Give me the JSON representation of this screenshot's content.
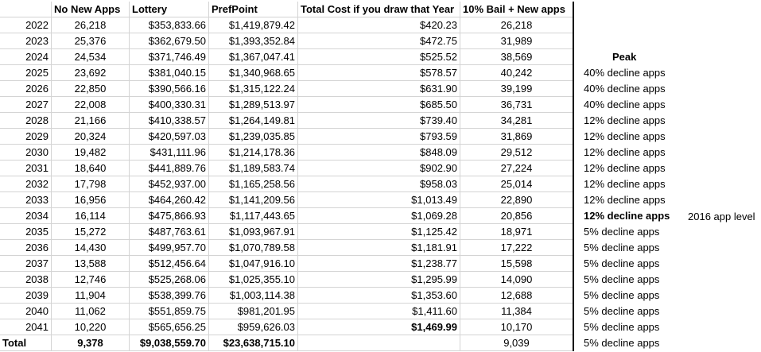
{
  "headers": [
    "",
    "No New Apps",
    "Lottery",
    "PrefPoint",
    "Total Cost if you draw that Year",
    "10% Bail + New apps"
  ],
  "rows": [
    {
      "year": "2022",
      "no_new_apps": "26,218",
      "lottery": "$353,833.66",
      "prefpoint": "$1,419,879.42",
      "total_cost": "$420.23",
      "bail_new": "26,218"
    },
    {
      "year": "2023",
      "no_new_apps": "25,376",
      "lottery": "$362,679.50",
      "prefpoint": "$1,393,352.84",
      "total_cost": "$472.75",
      "bail_new": "31,989"
    },
    {
      "year": "2024",
      "no_new_apps": "24,534",
      "lottery": "$371,746.49",
      "prefpoint": "$1,367,047.41",
      "total_cost": "$525.52",
      "bail_new": "38,569"
    },
    {
      "year": "2025",
      "no_new_apps": "23,692",
      "lottery": "$381,040.15",
      "prefpoint": "$1,340,968.65",
      "total_cost": "$578.57",
      "bail_new": "40,242"
    },
    {
      "year": "2026",
      "no_new_apps": "22,850",
      "lottery": "$390,566.16",
      "prefpoint": "$1,315,122.24",
      "total_cost": "$631.90",
      "bail_new": "39,199"
    },
    {
      "year": "2027",
      "no_new_apps": "22,008",
      "lottery": "$400,330.31",
      "prefpoint": "$1,289,513.97",
      "total_cost": "$685.50",
      "bail_new": "36,731"
    },
    {
      "year": "2028",
      "no_new_apps": "21,166",
      "lottery": "$410,338.57",
      "prefpoint": "$1,264,149.81",
      "total_cost": "$739.40",
      "bail_new": "34,281"
    },
    {
      "year": "2029",
      "no_new_apps": "20,324",
      "lottery": "$420,597.03",
      "prefpoint": "$1,239,035.85",
      "total_cost": "$793.59",
      "bail_new": "31,869"
    },
    {
      "year": "2030",
      "no_new_apps": "19,482",
      "lottery": "$431,111.96",
      "prefpoint": "$1,214,178.36",
      "total_cost": "$848.09",
      "bail_new": "29,512"
    },
    {
      "year": "2031",
      "no_new_apps": "18,640",
      "lottery": "$441,889.76",
      "prefpoint": "$1,189,583.74",
      "total_cost": "$902.90",
      "bail_new": "27,224"
    },
    {
      "year": "2032",
      "no_new_apps": "17,798",
      "lottery": "$452,937.00",
      "prefpoint": "$1,165,258.56",
      "total_cost": "$958.03",
      "bail_new": "25,014"
    },
    {
      "year": "2033",
      "no_new_apps": "16,956",
      "lottery": "$464,260.42",
      "prefpoint": "$1,141,209.56",
      "total_cost": "$1,013.49",
      "bail_new": "22,890"
    },
    {
      "year": "2034",
      "no_new_apps": "16,114",
      "lottery": "$475,866.93",
      "prefpoint": "$1,117,443.65",
      "total_cost": "$1,069.28",
      "bail_new": "20,856"
    },
    {
      "year": "2035",
      "no_new_apps": "15,272",
      "lottery": "$487,763.61",
      "prefpoint": "$1,093,967.91",
      "total_cost": "$1,125.42",
      "bail_new": "18,971"
    },
    {
      "year": "2036",
      "no_new_apps": "14,430",
      "lottery": "$499,957.70",
      "prefpoint": "$1,070,789.58",
      "total_cost": "$1,181.91",
      "bail_new": "17,222"
    },
    {
      "year": "2037",
      "no_new_apps": "13,588",
      "lottery": "$512,456.64",
      "prefpoint": "$1,047,916.10",
      "total_cost": "$1,238.77",
      "bail_new": "15,598"
    },
    {
      "year": "2038",
      "no_new_apps": "12,746",
      "lottery": "$525,268.06",
      "prefpoint": "$1,025,355.10",
      "total_cost": "$1,295.99",
      "bail_new": "14,090"
    },
    {
      "year": "2039",
      "no_new_apps": "11,904",
      "lottery": "$538,399.76",
      "prefpoint": "$1,003,114.38",
      "total_cost": "$1,353.60",
      "bail_new": "12,688"
    },
    {
      "year": "2040",
      "no_new_apps": "11,062",
      "lottery": "$551,859.75",
      "prefpoint": "$981,201.95",
      "total_cost": "$1,411.60",
      "bail_new": "11,384"
    },
    {
      "year": "2041",
      "no_new_apps": "10,220",
      "lottery": "$565,656.25",
      "prefpoint": "$959,626.03",
      "total_cost": "$1,469.99",
      "bail_new": "10,170"
    }
  ],
  "total": {
    "label": "Total",
    "no_new_apps": "9,378",
    "lottery": "$9,038,559.70",
    "prefpoint": "$23,638,715.10",
    "total_cost": "",
    "bail_new": "9,039"
  },
  "peak_label": "Peak",
  "declines": [
    "40% decline apps",
    "40% decline apps",
    "40% decline apps",
    "12% decline apps",
    "12% decline apps",
    "12% decline apps",
    "12% decline apps",
    "12% decline apps",
    "12% decline apps",
    "12% decline apps",
    "5% decline apps",
    "5% decline apps",
    "5% decline apps",
    "5% decline apps",
    "5% decline apps",
    "5% decline apps",
    "5% decline apps",
    "5% decline apps"
  ],
  "note_2016": "2016 app level"
}
